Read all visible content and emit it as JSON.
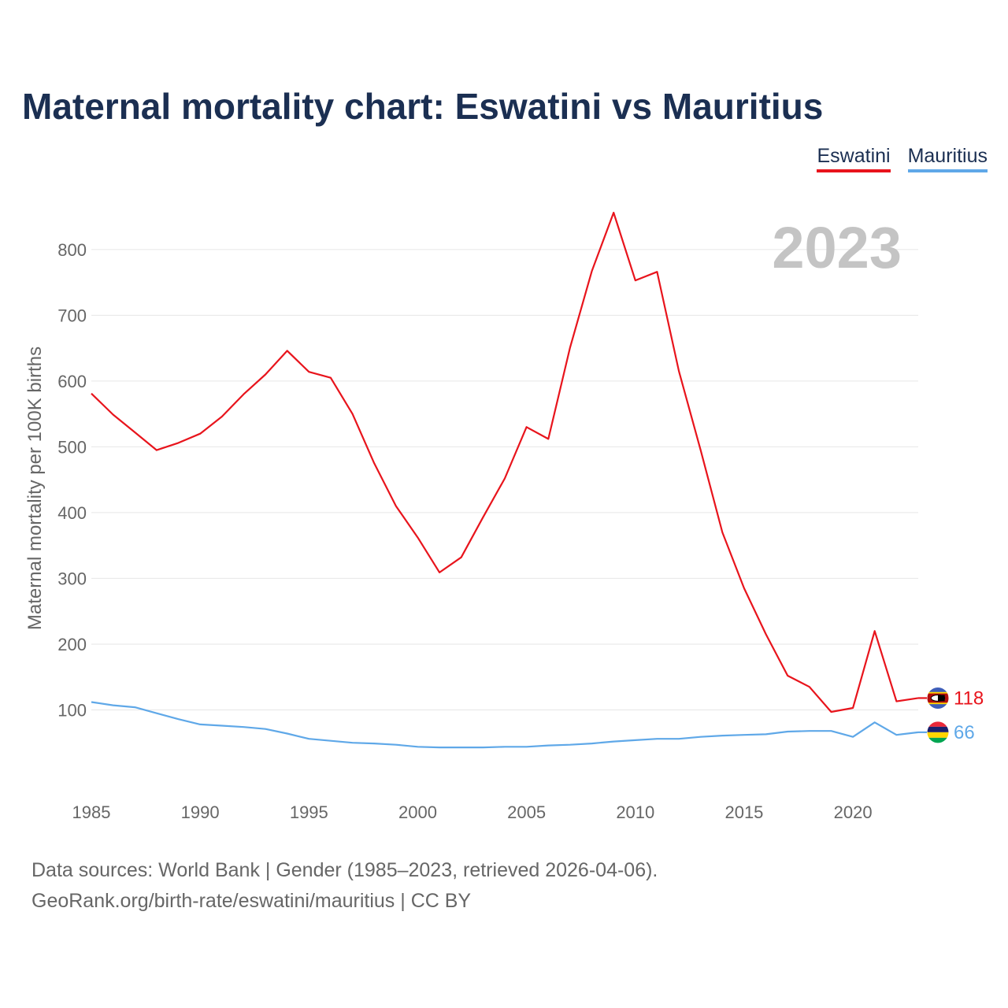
{
  "title": "Maternal mortality chart: Eswatini vs Mauritius",
  "legend": {
    "eswatini": "Eswatini",
    "mauritius": "Mauritius"
  },
  "year_badge": "2023",
  "sources": {
    "line1": "Data sources: World Bank | Gender (1985–2023, retrieved 2026-04-06).",
    "line2": "GeoRank.org/birth-rate/eswatini/mauritius | CC BY"
  },
  "chart_data": {
    "type": "line",
    "title": "Maternal mortality chart: Eswatini vs Mauritius",
    "xlabel": "",
    "ylabel": "Maternal mortality per 100K births",
    "x": [
      1985,
      1986,
      1987,
      1988,
      1989,
      1990,
      1991,
      1992,
      1993,
      1994,
      1995,
      1996,
      1997,
      1998,
      1999,
      2000,
      2001,
      2002,
      2003,
      2004,
      2005,
      2006,
      2007,
      2008,
      2009,
      2010,
      2011,
      2012,
      2013,
      2014,
      2015,
      2016,
      2017,
      2018,
      2019,
      2020,
      2021,
      2022,
      2023
    ],
    "xlim": [
      1985,
      2023
    ],
    "ylim": [
      0,
      880
    ],
    "xticks": [
      1985,
      1990,
      1995,
      2000,
      2005,
      2010,
      2015,
      2020
    ],
    "yticks": [
      100,
      200,
      300,
      400,
      500,
      600,
      700,
      800
    ],
    "series": [
      {
        "name": "Eswatini",
        "color": "#e8141c",
        "end_label": "118",
        "values": [
          581,
          549,
          522,
          495,
          506,
          520,
          546,
          580,
          610,
          646,
          614,
          605,
          550,
          475,
          410,
          362,
          309,
          332,
          393,
          452,
          530,
          512,
          651,
          767,
          856,
          753,
          766,
          615,
          495,
          370,
          285,
          215,
          152,
          135,
          97,
          103,
          220,
          113,
          118
        ]
      },
      {
        "name": "Mauritius",
        "color": "#5fa8e8",
        "end_label": "66",
        "values": [
          112,
          107,
          104,
          95,
          86,
          78,
          76,
          74,
          71,
          64,
          56,
          53,
          50,
          49,
          47,
          44,
          43,
          43,
          43,
          44,
          44,
          46,
          47,
          49,
          52,
          54,
          56,
          56,
          59,
          61,
          62,
          63,
          67,
          68,
          68,
          59,
          81,
          62,
          66
        ]
      }
    ]
  }
}
